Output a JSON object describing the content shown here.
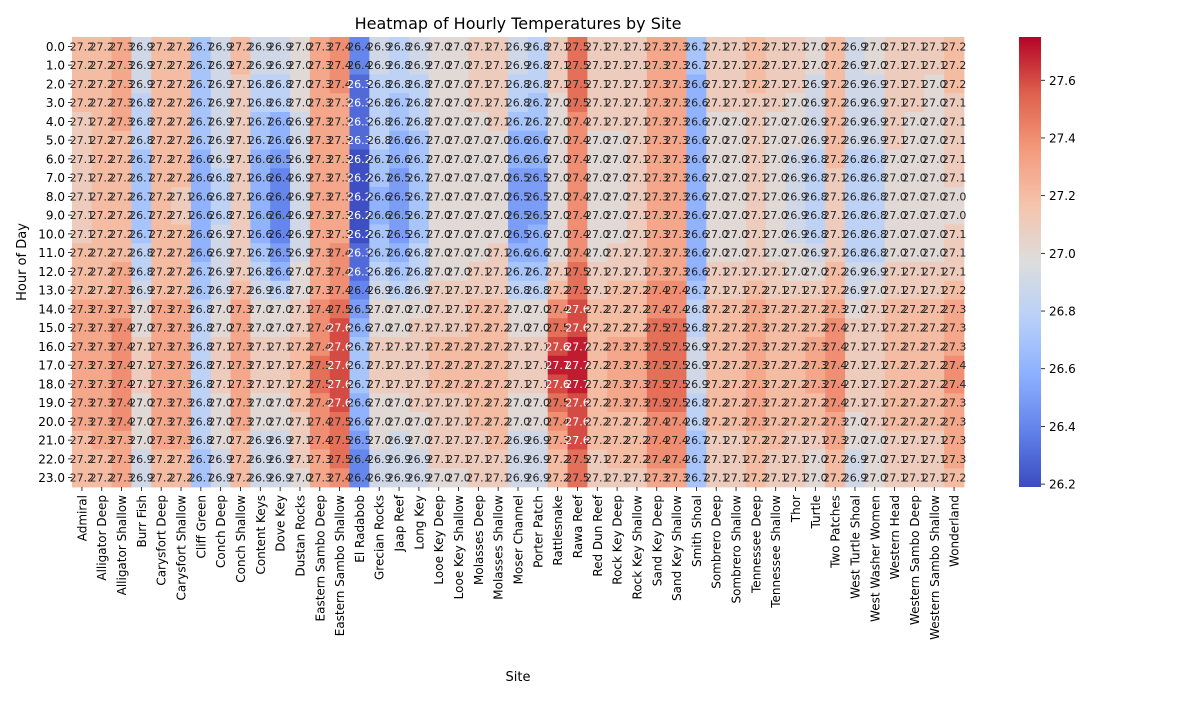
{
  "chart_data": {
    "type": "heatmap",
    "title": "Heatmap of Hourly Temperatures by Site",
    "xlabel": "Site",
    "ylabel": "Hour of Day",
    "x": [
      "Admiral",
      "Alligator Deep",
      "Alligator Shallow",
      "Burr Fish",
      "Carysfort Deep",
      "Carysfort Shallow",
      "Cliff Green",
      "Conch Deep",
      "Conch Shallow",
      "Content Keys",
      "Dove Key",
      "Dustan Rocks",
      "Eastern Sambo Deep",
      "Eastern Sambo Shallow",
      "El Radabob",
      "Grecian Rocks",
      "Jaap Reef",
      "Long Key",
      "Looe Key Deep",
      "Looe Key Shallow",
      "Molasses Deep",
      "Molasses Shallow",
      "Moser Channel",
      "Porter Patch",
      "Rattlesnake",
      "Rawa Reef",
      "Red Dun Reef",
      "Rock Key Deep",
      "Rock Key Shallow",
      "Sand Key Deep",
      "Sand Key Shallow",
      "Smith Shoal",
      "Sombrero Deep",
      "Sombrero Shallow",
      "Tennessee Deep",
      "Tennessee Shallow",
      "Thor",
      "Turtle",
      "Two Patches",
      "West Turtle Shoal",
      "West Washer Women",
      "Western Head",
      "Western Sambo Deep",
      "Western Sambo Shallow",
      "Wonderland"
    ],
    "y": [
      "0.0",
      "1.0",
      "2.0",
      "3.0",
      "4.0",
      "5.0",
      "6.0",
      "7.0",
      "8.0",
      "9.0",
      "10.0",
      "11.0",
      "12.0",
      "13.0",
      "14.0",
      "15.0",
      "16.0",
      "17.0",
      "18.0",
      "19.0",
      "20.0",
      "21.0",
      "22.0",
      "23.0"
    ],
    "values": [
      [
        27.2,
        27.2,
        27.3,
        26.9,
        27.2,
        27.2,
        26.7,
        26.9,
        27.2,
        26.9,
        26.9,
        27.0,
        27.3,
        27.4,
        26.4,
        26.9,
        26.8,
        26.9,
        27.0,
        27.0,
        27.1,
        27.1,
        26.9,
        26.8,
        27.1,
        27.5,
        27.1,
        27.1,
        27.1,
        27.3,
        27.3,
        26.7,
        27.1,
        27.1,
        27.2,
        27.1,
        27.1,
        27.0,
        27.2,
        26.9,
        27.0,
        27.1,
        27.1,
        27.1,
        27.2
      ],
      [
        27.2,
        27.2,
        27.3,
        26.9,
        27.2,
        27.2,
        26.7,
        26.9,
        27.2,
        26.9,
        26.9,
        27.0,
        27.3,
        27.4,
        26.4,
        26.9,
        26.8,
        26.9,
        27.0,
        27.0,
        27.1,
        27.1,
        26.9,
        26.8,
        27.1,
        27.5,
        27.1,
        27.1,
        27.1,
        27.3,
        27.3,
        26.7,
        27.1,
        27.1,
        27.2,
        27.1,
        27.1,
        27.0,
        27.2,
        26.9,
        27.0,
        27.1,
        27.1,
        27.1,
        27.2
      ],
      [
        27.2,
        27.2,
        27.3,
        26.9,
        27.2,
        27.2,
        26.7,
        26.9,
        27.1,
        26.8,
        26.8,
        27.0,
        27.3,
        27.4,
        26.3,
        26.8,
        26.8,
        26.8,
        27.0,
        27.0,
        27.1,
        27.1,
        26.8,
        26.8,
        27.1,
        27.5,
        27.1,
        27.1,
        27.1,
        27.3,
        27.3,
        26.6,
        27.1,
        27.1,
        27.2,
        27.1,
        27.1,
        26.9,
        27.2,
        26.9,
        26.9,
        27.1,
        27.1,
        27.0,
        27.2
      ],
      [
        27.2,
        27.2,
        27.3,
        26.8,
        27.2,
        27.2,
        26.7,
        26.9,
        27.1,
        26.8,
        26.8,
        27.0,
        27.3,
        27.3,
        26.3,
        26.8,
        26.7,
        26.8,
        27.0,
        27.0,
        27.1,
        27.1,
        26.8,
        26.7,
        27.0,
        27.5,
        27.1,
        27.1,
        27.1,
        27.3,
        27.3,
        26.6,
        27.1,
        27.1,
        27.1,
        27.1,
        27.0,
        26.9,
        27.2,
        26.9,
        26.9,
        27.1,
        27.1,
        27.0,
        27.1
      ],
      [
        27.1,
        27.2,
        27.3,
        26.8,
        27.2,
        27.2,
        26.7,
        26.9,
        27.1,
        26.7,
        26.6,
        26.9,
        27.3,
        27.3,
        26.3,
        26.8,
        26.7,
        26.8,
        27.0,
        27.0,
        27.0,
        27.1,
        26.7,
        26.7,
        27.0,
        27.4,
        27.1,
        27.1,
        27.1,
        27.3,
        27.3,
        26.6,
        27.0,
        27.0,
        27.1,
        27.0,
        27.0,
        26.9,
        27.2,
        26.9,
        26.9,
        27.1,
        27.0,
        27.0,
        27.1
      ],
      [
        27.1,
        27.2,
        27.2,
        26.8,
        27.2,
        27.2,
        26.7,
        26.9,
        27.1,
        26.7,
        26.6,
        26.9,
        27.3,
        27.3,
        26.3,
        26.8,
        26.6,
        26.7,
        27.0,
        27.0,
        27.0,
        27.0,
        26.6,
        26.6,
        27.0,
        27.4,
        27.0,
        27.0,
        27.1,
        27.3,
        27.3,
        26.6,
        27.0,
        27.0,
        27.1,
        27.0,
        27.0,
        26.9,
        27.2,
        26.9,
        26.9,
        27.1,
        27.0,
        27.0,
        27.1
      ],
      [
        27.1,
        27.2,
        27.2,
        26.7,
        27.2,
        27.2,
        26.6,
        26.9,
        27.1,
        26.6,
        26.5,
        26.9,
        27.3,
        27.3,
        26.2,
        26.7,
        26.6,
        26.7,
        27.0,
        27.0,
        27.0,
        27.0,
        26.6,
        26.6,
        27.0,
        27.4,
        27.0,
        27.0,
        27.1,
        27.3,
        27.3,
        26.6,
        27.0,
        27.0,
        27.1,
        27.0,
        26.9,
        26.8,
        27.2,
        26.8,
        26.8,
        27.0,
        27.0,
        27.0,
        27.1
      ],
      [
        27.1,
        27.2,
        27.2,
        26.7,
        27.2,
        27.2,
        26.6,
        26.8,
        27.1,
        26.6,
        26.4,
        26.9,
        27.3,
        27.3,
        26.2,
        26.7,
        26.5,
        26.7,
        27.0,
        27.0,
        27.0,
        27.0,
        26.5,
        26.5,
        27.0,
        27.4,
        27.0,
        27.0,
        27.1,
        27.3,
        27.3,
        26.6,
        27.0,
        27.0,
        27.1,
        27.0,
        26.9,
        26.8,
        27.1,
        26.8,
        26.8,
        27.0,
        27.0,
        27.0,
        27.1
      ],
      [
        27.1,
        27.2,
        27.2,
        26.7,
        27.2,
        27.1,
        26.6,
        26.8,
        27.1,
        26.6,
        26.4,
        26.9,
        27.3,
        27.3,
        26.2,
        26.6,
        26.5,
        26.7,
        27.0,
        27.0,
        27.0,
        27.0,
        26.5,
        26.5,
        27.0,
        27.4,
        27.0,
        27.0,
        27.1,
        27.3,
        27.3,
        26.6,
        27.0,
        27.0,
        27.1,
        27.0,
        26.9,
        26.8,
        27.1,
        26.8,
        26.8,
        27.0,
        27.0,
        27.0,
        27.0
      ],
      [
        27.1,
        27.2,
        27.2,
        26.7,
        27.2,
        27.1,
        26.6,
        26.8,
        27.1,
        26.6,
        26.4,
        26.9,
        27.3,
        27.3,
        26.2,
        26.6,
        26.5,
        26.7,
        27.0,
        27.0,
        27.0,
        27.0,
        26.5,
        26.5,
        27.0,
        27.4,
        27.0,
        27.0,
        27.1,
        27.3,
        27.3,
        26.6,
        27.0,
        27.0,
        27.1,
        27.0,
        26.9,
        26.8,
        27.1,
        26.8,
        26.8,
        27.0,
        27.0,
        27.0,
        27.0
      ],
      [
        27.1,
        27.2,
        27.2,
        26.7,
        27.2,
        27.2,
        26.6,
        26.9,
        27.1,
        26.6,
        26.4,
        26.9,
        27.3,
        27.3,
        26.2,
        26.7,
        26.5,
        26.7,
        27.0,
        27.0,
        27.0,
        27.0,
        26.5,
        26.6,
        27.0,
        27.4,
        27.0,
        27.0,
        27.1,
        27.3,
        27.3,
        26.6,
        27.0,
        27.0,
        27.1,
        27.0,
        26.9,
        26.8,
        27.1,
        26.8,
        26.8,
        27.0,
        27.0,
        27.0,
        27.1
      ],
      [
        27.2,
        27.2,
        27.2,
        26.8,
        27.2,
        27.2,
        26.6,
        26.9,
        27.1,
        26.7,
        26.5,
        26.9,
        27.3,
        27.4,
        26.3,
        26.7,
        26.6,
        26.8,
        27.0,
        27.0,
        27.0,
        27.1,
        26.6,
        26.6,
        27.0,
        27.4,
        27.0,
        27.1,
        27.1,
        27.3,
        27.3,
        26.6,
        27.0,
        27.0,
        27.1,
        27.0,
        27.0,
        26.9,
        27.1,
        26.8,
        26.8,
        27.0,
        27.0,
        27.0,
        27.1
      ],
      [
        27.2,
        27.2,
        27.3,
        26.8,
        27.2,
        27.2,
        26.7,
        26.9,
        27.1,
        26.8,
        26.6,
        27.0,
        27.3,
        27.4,
        26.3,
        26.8,
        26.7,
        26.8,
        27.0,
        27.0,
        27.1,
        27.1,
        26.7,
        26.7,
        27.1,
        27.5,
        27.1,
        27.1,
        27.1,
        27.3,
        27.3,
        26.6,
        27.1,
        27.1,
        27.1,
        27.1,
        27.0,
        27.0,
        27.2,
        26.9,
        26.9,
        27.1,
        27.1,
        27.1,
        27.1
      ],
      [
        27.2,
        27.2,
        27.3,
        26.9,
        27.2,
        27.2,
        26.7,
        26.9,
        27.2,
        26.9,
        26.8,
        27.0,
        27.3,
        27.4,
        26.4,
        26.9,
        26.8,
        26.9,
        27.1,
        27.1,
        27.1,
        27.1,
        26.8,
        26.8,
        27.2,
        27.5,
        27.1,
        27.2,
        27.2,
        27.4,
        27.4,
        26.7,
        27.1,
        27.1,
        27.2,
        27.1,
        27.1,
        27.1,
        27.2,
        26.9,
        27.0,
        27.1,
        27.1,
        27.1,
        27.2
      ],
      [
        27.3,
        27.3,
        27.3,
        27.0,
        27.3,
        27.3,
        26.8,
        27.0,
        27.3,
        27.0,
        27.0,
        27.1,
        27.4,
        27.5,
        26.5,
        27.0,
        27.0,
        27.0,
        27.1,
        27.1,
        27.2,
        27.2,
        27.0,
        27.0,
        27.4,
        27.6,
        27.2,
        27.2,
        27.2,
        27.4,
        27.4,
        26.8,
        27.2,
        27.2,
        27.3,
        27.2,
        27.2,
        27.2,
        27.3,
        27.0,
        27.1,
        27.2,
        27.2,
        27.2,
        27.3
      ],
      [
        27.3,
        27.3,
        27.4,
        27.0,
        27.3,
        27.3,
        26.8,
        27.0,
        27.3,
        27.0,
        27.0,
        27.1,
        27.4,
        27.6,
        26.6,
        27.0,
        27.0,
        27.1,
        27.1,
        27.1,
        27.2,
        27.2,
        27.0,
        27.0,
        27.5,
        27.6,
        27.2,
        27.2,
        27.2,
        27.5,
        27.5,
        26.8,
        27.2,
        27.2,
        27.3,
        27.2,
        27.2,
        27.2,
        27.4,
        27.1,
        27.1,
        27.2,
        27.2,
        27.2,
        27.3
      ],
      [
        27.3,
        27.3,
        27.4,
        27.1,
        27.3,
        27.3,
        26.8,
        27.1,
        27.3,
        27.1,
        27.1,
        27.2,
        27.4,
        27.6,
        26.7,
        27.1,
        27.1,
        27.1,
        27.2,
        27.2,
        27.2,
        27.2,
        27.1,
        27.1,
        27.6,
        27.7,
        27.2,
        27.3,
        27.3,
        27.5,
        27.5,
        26.9,
        27.2,
        27.2,
        27.3,
        27.2,
        27.2,
        27.3,
        27.4,
        27.1,
        27.1,
        27.2,
        27.2,
        27.2,
        27.3
      ],
      [
        27.3,
        27.3,
        27.4,
        27.1,
        27.3,
        27.3,
        26.8,
        27.1,
        27.3,
        27.1,
        27.1,
        27.2,
        27.5,
        27.6,
        26.7,
        27.1,
        27.1,
        27.1,
        27.2,
        27.2,
        27.2,
        27.2,
        27.1,
        27.1,
        27.7,
        27.7,
        27.2,
        27.3,
        27.3,
        27.5,
        27.5,
        26.9,
        27.2,
        27.2,
        27.3,
        27.2,
        27.2,
        27.3,
        27.4,
        27.1,
        27.1,
        27.2,
        27.2,
        27.2,
        27.4
      ],
      [
        27.3,
        27.3,
        27.4,
        27.1,
        27.3,
        27.3,
        26.8,
        27.1,
        27.3,
        27.1,
        27.1,
        27.2,
        27.5,
        27.6,
        26.7,
        27.1,
        27.1,
        27.1,
        27.2,
        27.2,
        27.2,
        27.2,
        27.1,
        27.1,
        27.6,
        27.7,
        27.2,
        27.3,
        27.3,
        27.5,
        27.5,
        26.9,
        27.2,
        27.2,
        27.3,
        27.2,
        27.2,
        27.3,
        27.4,
        27.1,
        27.1,
        27.2,
        27.2,
        27.2,
        27.4
      ],
      [
        27.3,
        27.3,
        27.4,
        27.0,
        27.3,
        27.3,
        26.8,
        27.0,
        27.3,
        27.0,
        27.0,
        27.2,
        27.4,
        27.6,
        26.6,
        27.0,
        27.0,
        27.1,
        27.1,
        27.1,
        27.2,
        27.2,
        27.0,
        27.0,
        27.5,
        27.6,
        27.2,
        27.3,
        27.3,
        27.5,
        27.5,
        26.8,
        27.2,
        27.2,
        27.3,
        27.2,
        27.2,
        27.2,
        27.4,
        27.1,
        27.1,
        27.2,
        27.2,
        27.2,
        27.3
      ],
      [
        27.3,
        27.3,
        27.4,
        27.0,
        27.3,
        27.3,
        26.8,
        27.0,
        27.3,
        27.0,
        27.0,
        27.1,
        27.4,
        27.5,
        26.6,
        27.0,
        27.0,
        27.0,
        27.1,
        27.1,
        27.2,
        27.2,
        27.0,
        27.0,
        27.4,
        27.6,
        27.2,
        27.2,
        27.2,
        27.4,
        27.4,
        26.8,
        27.2,
        27.2,
        27.3,
        27.2,
        27.2,
        27.2,
        27.3,
        27.0,
        27.1,
        27.2,
        27.2,
        27.2,
        27.3
      ],
      [
        27.2,
        27.3,
        27.3,
        27.0,
        27.3,
        27.3,
        26.8,
        27.0,
        27.2,
        26.9,
        26.9,
        27.1,
        27.4,
        27.5,
        26.5,
        27.0,
        26.9,
        27.0,
        27.1,
        27.1,
        27.1,
        27.2,
        26.9,
        26.9,
        27.3,
        27.6,
        27.2,
        27.2,
        27.2,
        27.4,
        27.4,
        26.7,
        27.1,
        27.1,
        27.2,
        27.2,
        27.1,
        27.1,
        27.3,
        27.0,
        27.0,
        27.1,
        27.1,
        27.1,
        27.3
      ],
      [
        27.2,
        27.2,
        27.3,
        26.9,
        27.2,
        27.2,
        26.7,
        26.9,
        27.2,
        26.9,
        26.9,
        27.1,
        27.3,
        27.5,
        26.4,
        26.9,
        26.9,
        26.9,
        27.1,
        27.1,
        27.1,
        27.1,
        26.9,
        26.9,
        27.2,
        27.5,
        27.1,
        27.2,
        27.2,
        27.4,
        27.4,
        26.7,
        27.1,
        27.1,
        27.2,
        27.1,
        27.1,
        27.0,
        27.2,
        26.9,
        27.0,
        27.1,
        27.1,
        27.1,
        27.3
      ],
      [
        27.2,
        27.2,
        27.3,
        26.9,
        27.2,
        27.2,
        26.7,
        26.9,
        27.2,
        26.9,
        26.9,
        27.0,
        27.3,
        27.4,
        26.4,
        26.9,
        26.9,
        26.9,
        27.0,
        27.0,
        27.1,
        27.1,
        26.9,
        26.9,
        27.2,
        27.5,
        27.1,
        27.1,
        27.1,
        27.3,
        27.3,
        26.7,
        27.1,
        27.1,
        27.2,
        27.1,
        27.1,
        27.0,
        27.2,
        26.9,
        27.0,
        27.1,
        27.1,
        27.1,
        27.2
      ]
    ],
    "value_format": "1 decimal",
    "colormap": "coolwarm",
    "color_range": [
      26.19,
      27.75
    ],
    "colorbar_ticks": [
      26.2,
      26.4,
      26.6,
      26.8,
      27.0,
      27.2,
      27.4,
      27.6
    ],
    "colorbar_tick_labels": [
      "26.2",
      "26.4",
      "26.6",
      "26.8",
      "27.0",
      "27.2",
      "27.4",
      "27.6"
    ],
    "legend": "colorbar-right",
    "grid": false,
    "colors": {
      "cold": "#3b4cc0",
      "neutral": "#dddddd",
      "hot": "#b40426",
      "text_dark": "#262626",
      "text_light": "#ffffff"
    }
  }
}
